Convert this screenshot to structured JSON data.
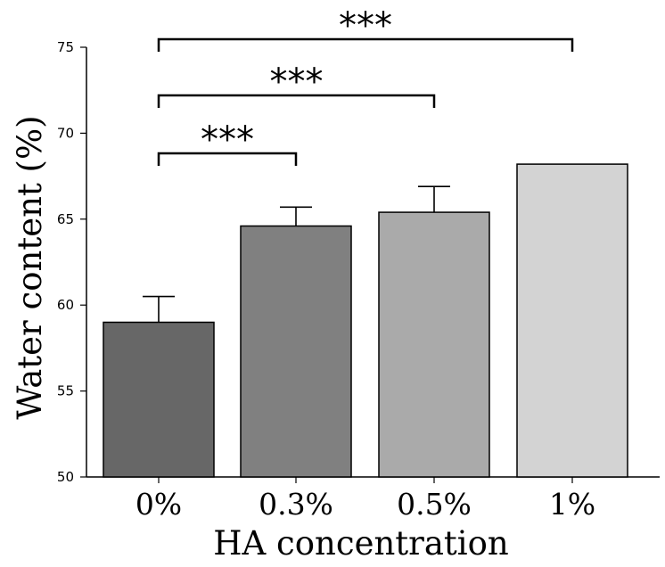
{
  "chart_data": {
    "type": "bar",
    "title": "",
    "xlabel": "HA concentration",
    "ylabel": "Water content (%)",
    "ylim": [
      50,
      75
    ],
    "yticks": [
      50,
      55,
      60,
      65,
      70,
      75
    ],
    "categories": [
      "0%",
      "0.3%",
      "0.5%",
      "1%"
    ],
    "values": [
      59.0,
      64.6,
      65.4,
      68.2
    ],
    "errors": [
      1.5,
      1.1,
      1.5,
      null
    ],
    "colors": [
      "#676767",
      "#808080",
      "#aaaaaa",
      "#d3d3d3"
    ],
    "significance": [
      {
        "from": "0%",
        "to": "0.3%",
        "label": "***"
      },
      {
        "from": "0%",
        "to": "0.5%",
        "label": "***"
      },
      {
        "from": "0%",
        "to": "1%",
        "label": "***"
      }
    ]
  }
}
